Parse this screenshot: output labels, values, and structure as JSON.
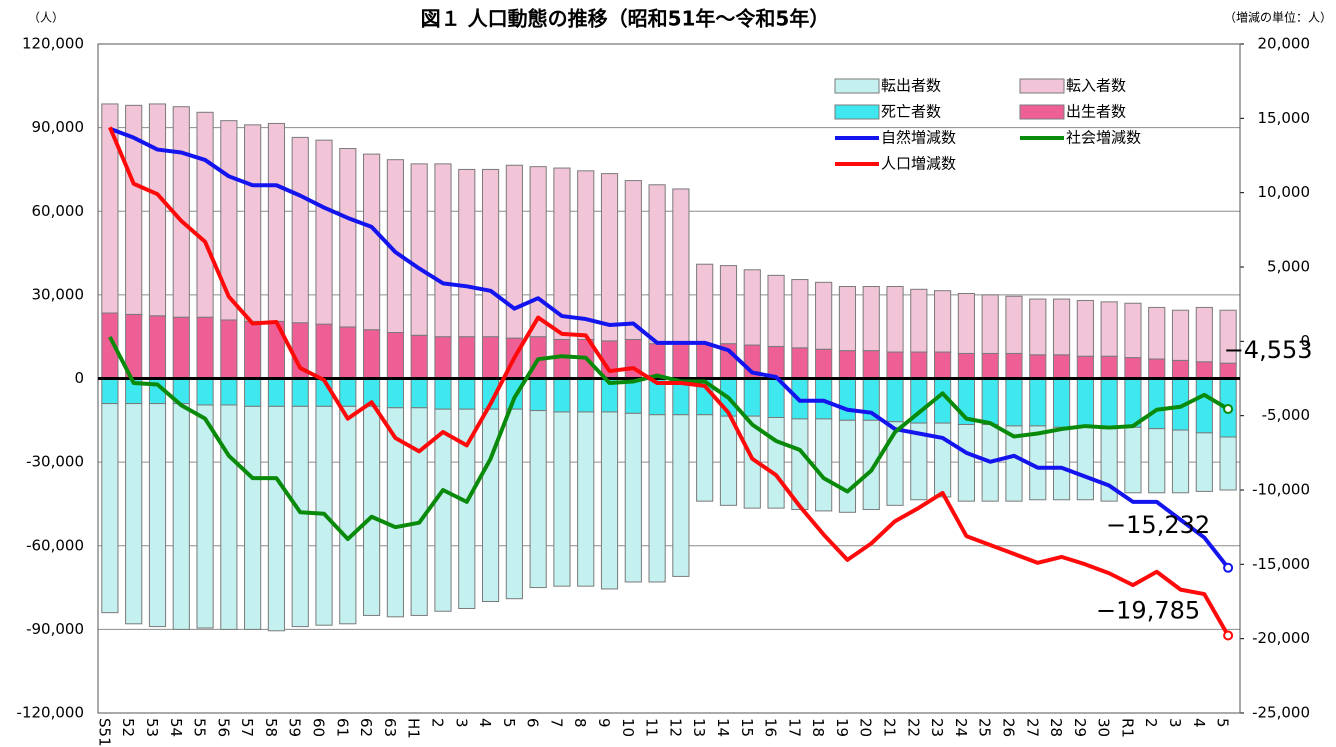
{
  "chart_data": {
    "type": "bar-line",
    "title": "図１ 人口動態の推移（昭和51年～令和5年）",
    "y_label": "（人）",
    "y2_label": "（増減の単位：人）",
    "categories": [
      "S51",
      "52",
      "53",
      "54",
      "55",
      "56",
      "57",
      "58",
      "59",
      "60",
      "61",
      "62",
      "63",
      "H1",
      "2",
      "3",
      "4",
      "5",
      "6",
      "7",
      "8",
      "9",
      "10",
      "11",
      "12",
      "13",
      "14",
      "15",
      "16",
      "17",
      "18",
      "19",
      "20",
      "21",
      "22",
      "23",
      "24",
      "25",
      "26",
      "27",
      "28",
      "29",
      "30",
      "R1",
      "2",
      "3",
      "4",
      "5"
    ],
    "ylim": [
      -120000,
      120000
    ],
    "yticks": [
      {
        "value": -120000,
        "label": "-120,000"
      },
      {
        "value": -90000,
        "label": "-90,000"
      },
      {
        "value": -60000,
        "label": "-60,000"
      },
      {
        "value": -30000,
        "label": "-30,000"
      },
      0,
      {
        "value": 30000,
        "label": "30,000"
      },
      {
        "value": 60000,
        "label": "60,000"
      },
      {
        "value": 90000,
        "label": "90,000"
      },
      {
        "value": 120000,
        "label": "120,000"
      }
    ],
    "y2lim": [
      -25000,
      20000
    ],
    "y2ticks": [
      {
        "value": -25000,
        "label": "-25,000"
      },
      {
        "value": -20000,
        "label": "-20,000"
      },
      {
        "value": -15000,
        "label": "-15,000"
      },
      {
        "value": -10000,
        "label": "-10,000"
      },
      {
        "value": -5000,
        "label": "-5,000"
      },
      0,
      {
        "value": 5000,
        "label": "5,000"
      },
      {
        "value": 10000,
        "label": "10,000"
      },
      {
        "value": 15000,
        "label": "15,000"
      },
      {
        "value": 20000,
        "label": "20,000"
      }
    ],
    "grid": true,
    "series": [
      {
        "name": "転出者数",
        "type": "bar",
        "color": "#c4f1f0",
        "values": [
          -75000,
          -79000,
          -80000,
          -81000,
          -80000,
          -80500,
          -80000,
          -80500,
          -79000,
          -78500,
          -78000,
          -75000,
          -75000,
          -74500,
          -72500,
          -71500,
          -69000,
          -68000,
          -63500,
          -62500,
          -62500,
          -63500,
          -60500,
          -60000,
          -58000,
          -31000,
          -32000,
          -33000,
          -32500,
          -32500,
          -33000,
          -33000,
          -32000,
          -30000,
          -27500,
          -26500,
          -27500,
          -27500,
          -27000,
          -26500,
          -26000,
          -26000,
          -26000,
          -23500,
          -23000,
          -22500,
          -21000,
          -19000
        ]
      },
      {
        "name": "転入者数",
        "type": "bar",
        "color": "#f2c4d8",
        "values": [
          75000,
          75000,
          76000,
          75500,
          73500,
          71500,
          70500,
          71000,
          66500,
          66000,
          64000,
          63000,
          62000,
          61500,
          62000,
          60000,
          60000,
          62000,
          61000,
          61500,
          60500,
          60000,
          57000,
          57000,
          55500,
          28500,
          28000,
          27000,
          25500,
          24500,
          24000,
          23000,
          23000,
          23500,
          22500,
          22000,
          21500,
          21000,
          20500,
          20000,
          20000,
          20000,
          19500,
          19500,
          18500,
          18000,
          19500,
          19000
        ]
      },
      {
        "name": "死亡者数",
        "type": "bar",
        "color": "#3ee8ee",
        "values": [
          -9000,
          -9000,
          -9000,
          -9000,
          -9500,
          -9500,
          -10000,
          -10000,
          -10000,
          -10000,
          -10000,
          -10000,
          -10500,
          -10500,
          -11000,
          -11000,
          -11000,
          -11000,
          -11500,
          -12000,
          -12000,
          -12000,
          -12500,
          -13000,
          -13000,
          -13000,
          -13500,
          -13500,
          -14000,
          -14500,
          -14500,
          -15000,
          -15000,
          -15500,
          -16000,
          -16000,
          -16500,
          -16500,
          -17000,
          -17000,
          -17500,
          -17500,
          -18000,
          -17500,
          -18000,
          -18500,
          -19500,
          -21000
        ]
      },
      {
        "name": "出生者数",
        "type": "bar",
        "color": "#ee5f96",
        "values": [
          23500,
          23000,
          22500,
          22000,
          22000,
          21000,
          20500,
          20500,
          20000,
          19500,
          18500,
          17500,
          16500,
          15500,
          15000,
          15000,
          15000,
          14500,
          15000,
          14000,
          14000,
          13500,
          14000,
          12500,
          12500,
          12500,
          12500,
          12000,
          11500,
          11000,
          10500,
          10000,
          10000,
          9500,
          9500,
          9500,
          9000,
          9000,
          9000,
          8500,
          8500,
          8000,
          8000,
          7500,
          7000,
          6500,
          6000,
          5500
        ]
      },
      {
        "name": "自然増減数",
        "type": "line",
        "axis": "y2",
        "color": "#1414ee",
        "values": [
          14300,
          13700,
          12900,
          12700,
          12200,
          11100,
          10500,
          10500,
          9800,
          9000,
          8300,
          7700,
          6000,
          4900,
          3900,
          3700,
          3400,
          2200,
          2900,
          1700,
          1500,
          1100,
          1200,
          -100,
          -100,
          -100,
          -600,
          -2100,
          -2400,
          -4000,
          -4000,
          -4600,
          -4800,
          -5900,
          -6200,
          -6500,
          -7500,
          -8100,
          -7700,
          -8500,
          -8500,
          -9100,
          -9700,
          -10800,
          -10800,
          -12000,
          -13200,
          -15232
        ],
        "value_labels": [
          null,
          null,
          null,
          null,
          null,
          null,
          null,
          null,
          null,
          null,
          null,
          null,
          null,
          null,
          null,
          null,
          null,
          null,
          null,
          null,
          null,
          null,
          null,
          null,
          null,
          null,
          null,
          null,
          null,
          null,
          null,
          null,
          null,
          null,
          null,
          null,
          null,
          null,
          null,
          null,
          null,
          null,
          null,
          null,
          null,
          null,
          null,
          "−15,232"
        ]
      },
      {
        "name": "社会増減数",
        "type": "line",
        "axis": "y2",
        "color": "#0a8a0a",
        "values": [
          300,
          -2800,
          -2900,
          -4300,
          -5200,
          -7700,
          -9200,
          -9200,
          -11500,
          -11600,
          -13300,
          -11800,
          -12500,
          -12200,
          -10000,
          -10800,
          -7900,
          -3800,
          -1200,
          -1000,
          -1100,
          -2800,
          -2700,
          -2300,
          -2700,
          -2700,
          -3800,
          -5600,
          -6700,
          -7300,
          -9200,
          -10100,
          -8700,
          -6100,
          -4800,
          -3500,
          -5200,
          -5500,
          -6400,
          -6200,
          -5900,
          -5700,
          -5800,
          -5700,
          -4600,
          -4400,
          -3600,
          -4553
        ],
        "value_labels": [
          null,
          null,
          null,
          null,
          null,
          null,
          null,
          null,
          null,
          null,
          null,
          null,
          null,
          null,
          null,
          null,
          null,
          null,
          null,
          null,
          null,
          null,
          null,
          null,
          null,
          null,
          null,
          null,
          null,
          null,
          null,
          null,
          null,
          null,
          null,
          null,
          null,
          null,
          null,
          null,
          null,
          null,
          null,
          null,
          null,
          null,
          null,
          "−4,553"
        ]
      },
      {
        "name": "人口増減数",
        "type": "line",
        "axis": "y2",
        "color": "#ff0a0a",
        "values": [
          14400,
          10600,
          9900,
          8100,
          6700,
          3000,
          1200,
          1300,
          -1800,
          -2600,
          -5200,
          -4100,
          -6500,
          -7400,
          -6100,
          -7000,
          -4200,
          -1100,
          1600,
          500,
          400,
          -2000,
          -1800,
          -2800,
          -2800,
          -3000,
          -4800,
          -7900,
          -9000,
          -11100,
          -13000,
          -14700,
          -13600,
          -12100,
          -11200,
          -10200,
          -13100,
          -13700,
          -14300,
          -14900,
          -14500,
          -15000,
          -15600,
          -16400,
          -15500,
          -16700,
          -17000,
          -19785
        ],
        "value_labels": [
          null,
          null,
          null,
          null,
          null,
          null,
          null,
          null,
          null,
          null,
          null,
          null,
          null,
          null,
          null,
          null,
          null,
          null,
          null,
          null,
          null,
          null,
          null,
          null,
          null,
          null,
          null,
          null,
          null,
          null,
          null,
          null,
          null,
          null,
          null,
          null,
          null,
          null,
          null,
          null,
          null,
          null,
          null,
          null,
          null,
          null,
          null,
          "−19,785"
        ]
      }
    ]
  }
}
